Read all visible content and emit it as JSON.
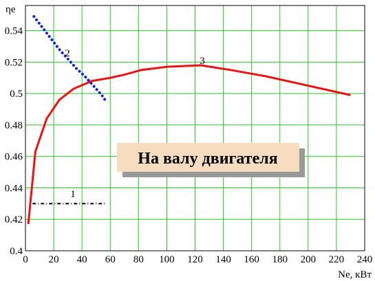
{
  "chart_data": {
    "type": "line",
    "title": "На валу двигателя",
    "x_label": "Ne, кВт",
    "y_label": "ηe",
    "xlim": [
      0,
      240
    ],
    "xticks": [
      0,
      20,
      40,
      60,
      80,
      100,
      120,
      140,
      160,
      180,
      200,
      220,
      240
    ],
    "ylim": [
      0.4,
      0.556
    ],
    "yticks": [
      0.4,
      0.42,
      0.44,
      0.46,
      0.48,
      0.5,
      0.52,
      0.54
    ],
    "grid": true,
    "grid_color": "#22cc22",
    "series": [
      {
        "color": "#ee1111",
        "style": "solid",
        "x": [
          2,
          7,
          15,
          24,
          34,
          47,
          60,
          70,
          82,
          100,
          124,
          145,
          170,
          200,
          230
        ],
        "values": [
          0.417,
          0.463,
          0.484,
          0.496,
          0.503,
          0.508,
          0.51,
          0.512,
          0.515,
          0.517,
          0.518,
          0.515,
          0.511,
          0.505,
          0.499
        ]
      },
      {
        "color": "#1122dd",
        "style": "dotted",
        "x": [
          6,
          12,
          18,
          24,
          30,
          36,
          42,
          48,
          54,
          57
        ],
        "values": [
          0.549,
          0.542,
          0.535,
          0.528,
          0.522,
          0.516,
          0.511,
          0.505,
          0.499,
          0.495
        ]
      },
      {
        "color": "#000000",
        "style": "dashdot",
        "x": [
          5,
          57
        ],
        "values": [
          0.43,
          0.43
        ]
      }
    ],
    "annotations": [
      "1",
      "2",
      "3"
    ]
  }
}
